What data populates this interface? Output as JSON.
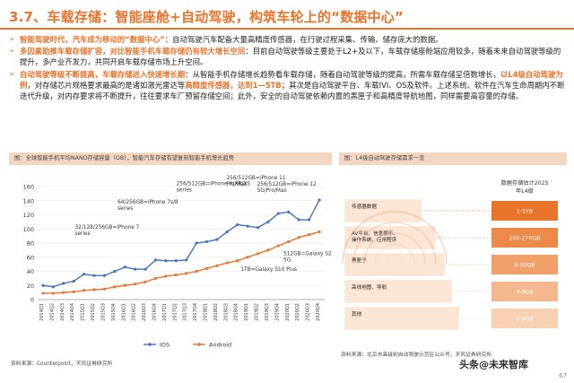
{
  "title": "3.7、车载存储：智能座舱+自动驾驶，构筑车轮上的“数据中心”",
  "bullets": [
    {
      "head": "智能驾驶时代，汽车成为移动的“数据中心”",
      "body": "：自动驾驶汽车配备大量高精度传感器，在行驶过程采集、传输、储存庞大的数据。"
    },
    {
      "head": "多因素助推车载存储扩容，对比智能手机车载存储仍有较大增长空间",
      "body": "：目前自动驾驶等级主要处于L2+及以下，车载存储座舱端应用较多，随着未来自动驾驶等级的提升，多产业齐发力，共同开启车载存储市场上升空间。"
    },
    {
      "head": "自动驾驶等级不断提高，车载存储进入快速增长期",
      "body": "：从智能手机存储增长趋势看车载存储，随着自动驾驶等级的提高，所需车载存储呈倍数增长，",
      "head2": "以L4级自动驾驶为例",
      "body2": "，对存储芯片规格要求最高的是诸如激光雷达等",
      "head3": "高精度传感器，达到1—5TB",
      "body3": "；其次是自动驾驶平台、车载IVI、OS及软件。上述系统、软件在汽车生命周期内不断迭代升级，对内存要求将不断提升，往往要求车厂预留存储空间；此外，安全的自动驾驶依赖内置的黑匣子和高精度导航地图，同样需要高容量的存储。"
    }
  ],
  "left_panel": {
    "header": "图：全球智能手机平均NAND存储容量（GB），智能汽车存储有望复刻智能手机增长趋势",
    "source": "资料来源：Counterpoint，天风证券研究所",
    "annotations": [
      "256/512GB=iPhone 12",
      "5G/Pro/Max",
      "256/512GB=iPhone 11",
      "Pro/Max",
      "256/512GB=iPhone X/XR/XS",
      "series",
      "64/256GB=iPhone 7s/8",
      "series",
      "32/128/256GB=iPhone 7",
      "series",
      "512GB=Galaxy S20 Plus",
      "5G",
      "1TB=Galaxy S10 Plus"
    ]
  },
  "right_panel": {
    "header": "图：L4级自动驾驶存储需求一览",
    "source": "资料来源：北京市高级别自动驾驶示范区公众号，天风证券研究所",
    "title_line1": "数据存储估计2025",
    "title_line2": "年L4级",
    "layers": [
      {
        "label": "传感器数据",
        "value": "1-5TB",
        "color": "#e8732a"
      },
      {
        "label": "AV平台、信息娱乐、操作系统、应用程序",
        "value": "200-270GB",
        "color": "#ed8a4a"
      },
      {
        "label": "黑匣子",
        "value": "6-50GB",
        "color": "#f2a06a"
      },
      {
        "label": "高线地图、导航",
        "value": "3-9GB",
        "color": "#f5b88e"
      },
      {
        "label": "其他",
        "value": "2-9GB",
        "color": "#f8d0b2"
      }
    ]
  },
  "chart_data": {
    "type": "line",
    "title": "",
    "xlabel": "",
    "ylabel": "",
    "ylim": [
      0,
      160
    ],
    "yticks": [
      0,
      20,
      40,
      60,
      80,
      100,
      120,
      140,
      160
    ],
    "categories": [
      "2014Q1",
      "2014Q2",
      "2014Q3",
      "2014Q4",
      "2015Q1",
      "2015Q2",
      "2015Q3",
      "2015Q4",
      "2016Q1",
      "2016Q2",
      "2016Q3",
      "2016Q4",
      "2017Q1",
      "2017Q2",
      "2017Q3",
      "2017Q4",
      "2018Q1",
      "2018Q2",
      "2018Q3",
      "2018Q4",
      "2019Q1",
      "2019Q2",
      "2019Q3",
      "2019Q4",
      "2020Q1",
      "2020Q2",
      "2020Q3",
      "2020Q4"
    ],
    "series": [
      {
        "name": "IOS",
        "color": "#4472c4",
        "values": [
          20,
          18,
          23,
          26,
          36,
          34,
          34,
          40,
          46,
          43,
          43,
          56,
          55,
          55,
          56,
          80,
          82,
          85,
          96,
          106,
          104,
          102,
          110,
          122,
          124,
          113,
          113,
          141
        ]
      },
      {
        "name": "Android",
        "color": "#e8732a",
        "values": [
          9,
          9,
          10,
          11,
          13,
          14,
          15,
          18,
          20,
          22,
          25,
          30,
          33,
          35,
          37,
          40,
          44,
          48,
          52,
          55,
          60,
          65,
          70,
          76,
          82,
          88,
          92,
          96
        ]
      }
    ],
    "legend_position": "bottom"
  },
  "watermark": "头条@未来智库",
  "page_number": "67"
}
